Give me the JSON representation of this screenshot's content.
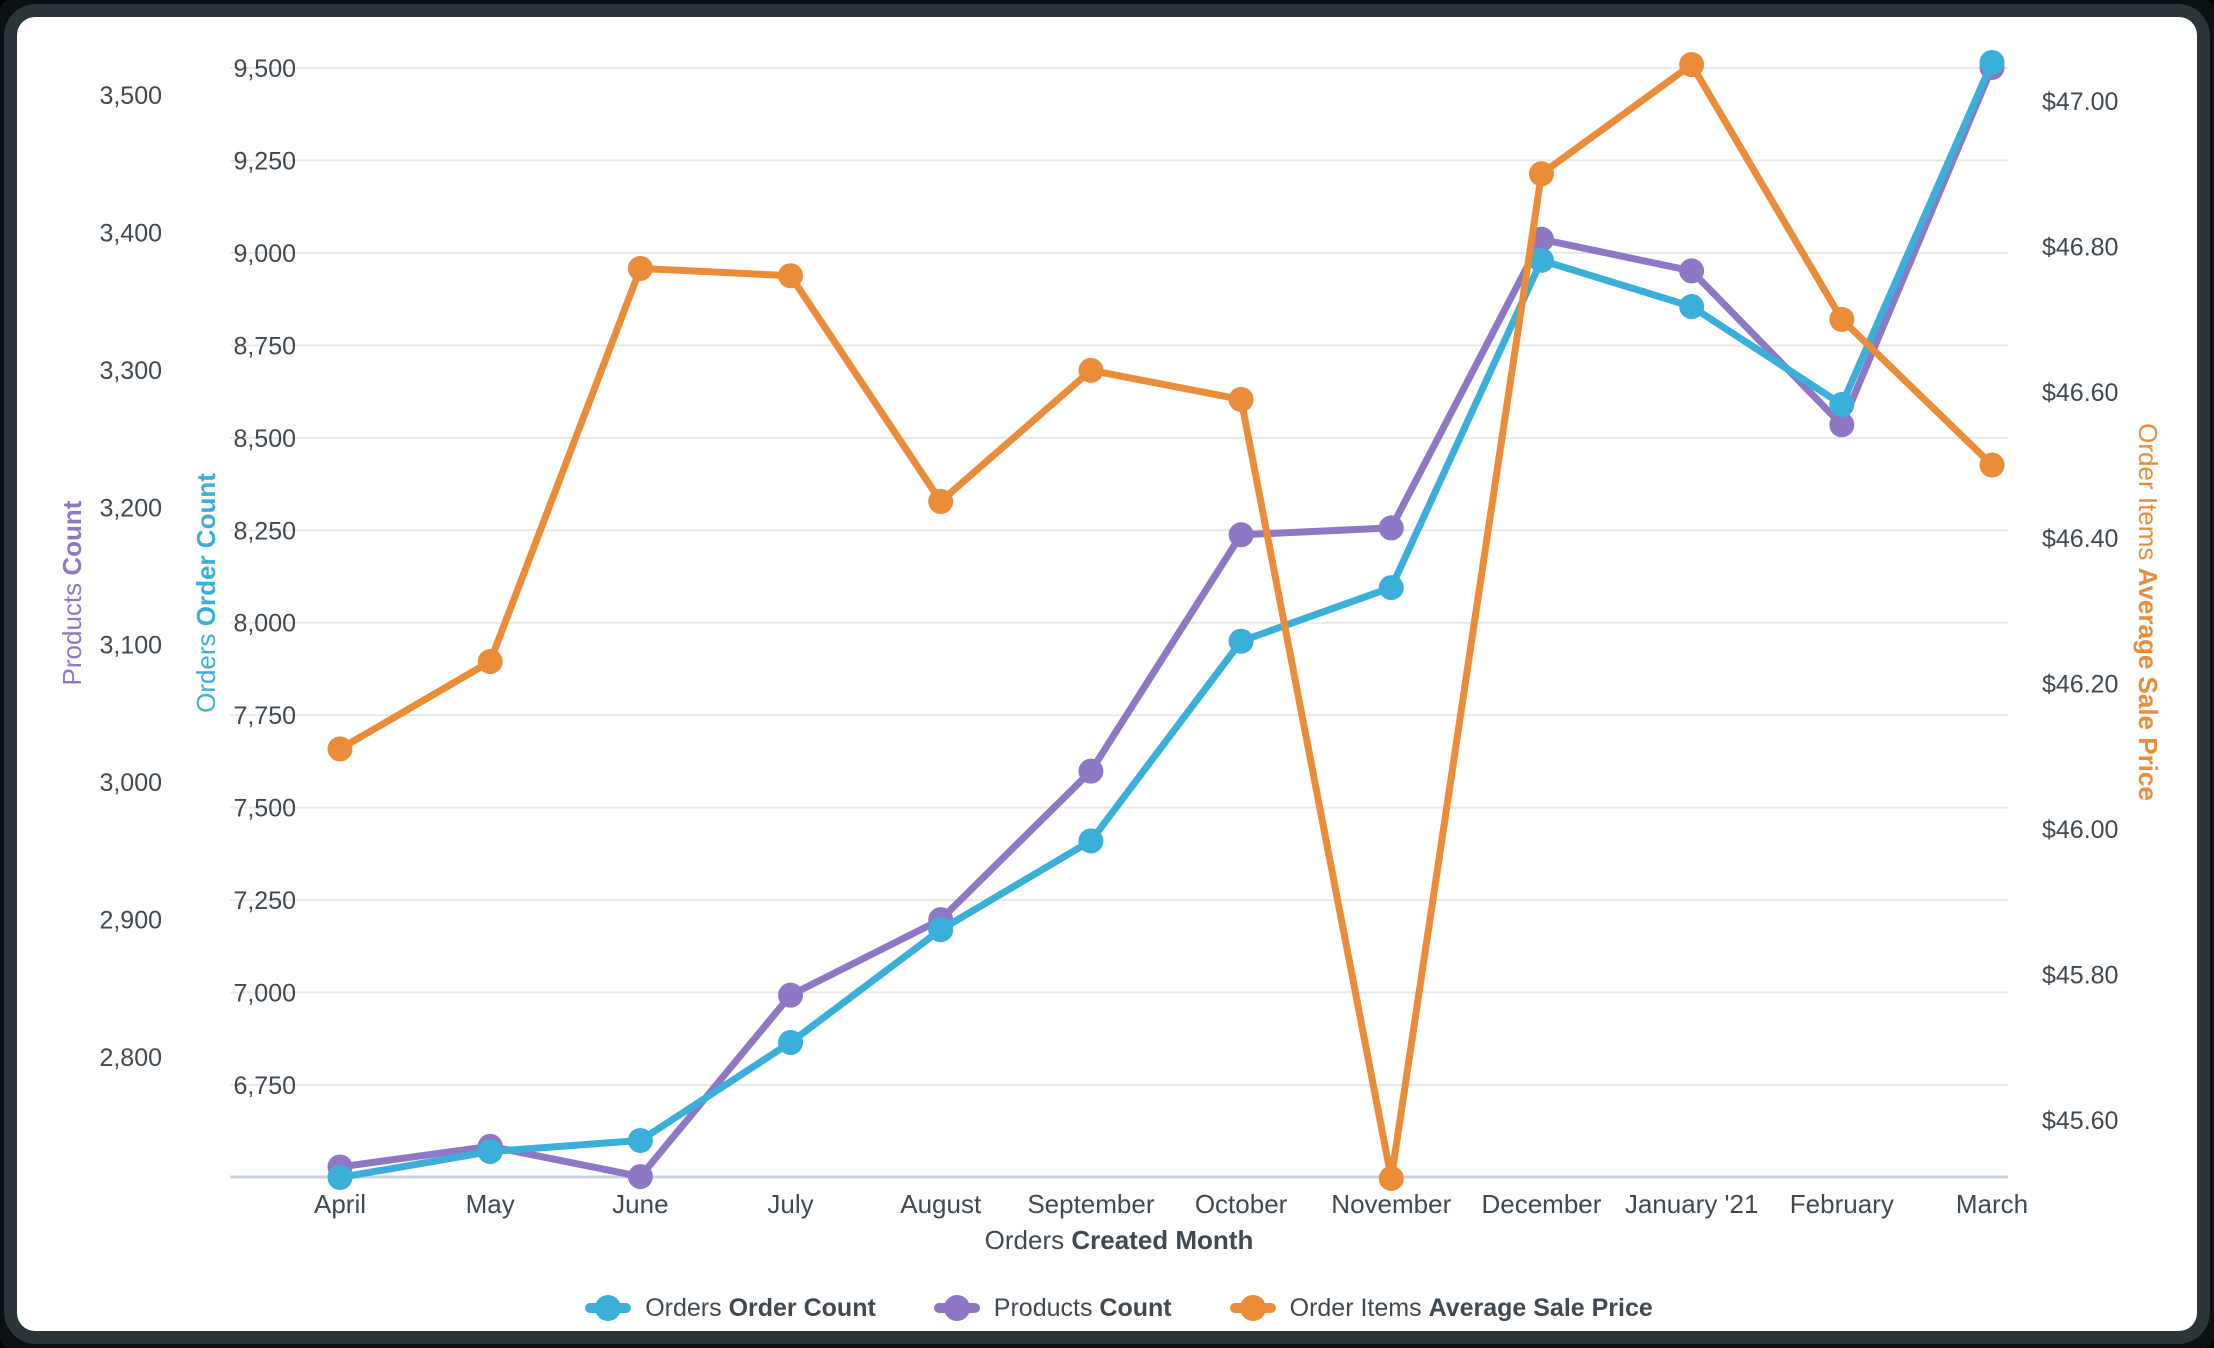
{
  "window": {
    "background": "#000000",
    "frame_color": "#2B3539",
    "card_color": "#FFFFFF"
  },
  "chart_data": {
    "type": "line",
    "categories": [
      "April",
      "May",
      "June",
      "July",
      "August",
      "September",
      "October",
      "November",
      "December",
      "January '21",
      "February",
      "March"
    ],
    "x_axis": {
      "title_regular": "Orders",
      "title_bold": "Created Month"
    },
    "axes": {
      "products": {
        "title_regular": "Products",
        "title_bold": "Count",
        "color": "#8E77C5",
        "tick_values": [
          2800,
          2900,
          3000,
          3100,
          3200,
          3300,
          3400,
          3500
        ],
        "tick_labels": [
          "2,800",
          "2,900",
          "3,000",
          "3,100",
          "3,200",
          "3,300",
          "3,400",
          "3,500"
        ]
      },
      "orders": {
        "title_regular": "Orders",
        "title_bold": "Order Count",
        "color": "#39AFD9",
        "tick_values": [
          6750,
          7000,
          7250,
          7500,
          7750,
          8000,
          8250,
          8500,
          8750,
          9000,
          9250,
          9500
        ],
        "tick_labels": [
          "6,750",
          "7,000",
          "7,250",
          "7,500",
          "7,750",
          "8,000",
          "8,250",
          "8,500",
          "8,750",
          "9,000",
          "9,250",
          "9,500"
        ]
      },
      "price": {
        "title_regular": "Order Items",
        "title_bold": "Average Sale Price",
        "color": "#EA8C38",
        "tick_values": [
          45.6,
          45.8,
          46.0,
          46.2,
          46.4,
          46.6,
          46.8,
          47.0
        ],
        "tick_labels": [
          "$45.60",
          "$45.80",
          "$46.00",
          "$46.20",
          "$46.40",
          "$46.60",
          "$46.80",
          "$47.00"
        ]
      }
    },
    "series": [
      {
        "name": "Orders Order Count",
        "legend_regular": "Orders",
        "legend_bold": "Order Count",
        "axis": "orders",
        "color": "#39AFD9",
        "values": [
          6500,
          6570,
          6600,
          6865,
          7170,
          7410,
          7950,
          8095,
          8980,
          8855,
          8590,
          9515
        ]
      },
      {
        "name": "Products Count",
        "legend_regular": "Products",
        "legend_bold": "Count",
        "axis": "products",
        "color": "#8E77C5",
        "values": [
          2720,
          2735,
          2713,
          2845,
          2900,
          3008,
          3180,
          3185,
          3395,
          3372,
          3260,
          3520
        ]
      },
      {
        "name": "Order Items Average Sale Price",
        "legend_regular": "Order Items",
        "legend_bold": "Average Sale Price",
        "axis": "price",
        "color": "#EA8C38",
        "values": [
          46.11,
          46.23,
          46.77,
          46.76,
          46.45,
          46.63,
          46.59,
          45.52,
          46.9,
          47.05,
          46.7,
          46.5
        ]
      }
    ],
    "grid": {
      "line_color": "#E9E9E9",
      "baseline_color": "#C9D3E6",
      "text_color": "#404950"
    },
    "legend_position": "bottom",
    "axis_ranges": {
      "orders": [
        6500,
        9575
      ],
      "products": [
        2712,
        3540
      ],
      "price": [
        45.52,
        47.08
      ]
    }
  }
}
